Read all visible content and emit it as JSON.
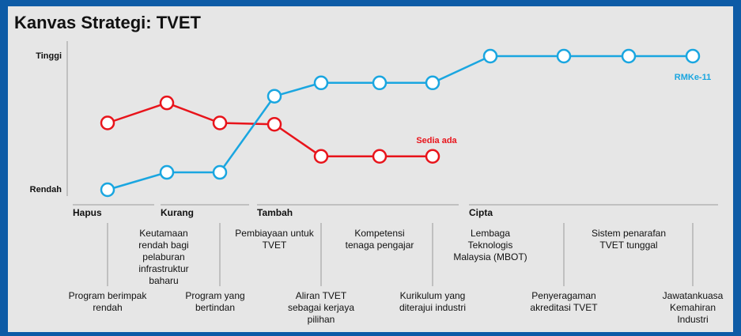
{
  "chart_data": {
    "type": "line",
    "title": "Kanvas Strategi: TVET",
    "categories": [
      "Program berimpak rendah",
      "Keutamaan rendah bagi pelaburan infrastruktur baharu",
      "Program yang bertindan",
      "Pembiayaan untuk TVET",
      "Aliran TVET sebagai kerjaya pilihan",
      "Kompetensi tenaga pengajar",
      "Kurikulum yang diterajui industri",
      "Lembaga Teknologis Malaysia (MBOT)",
      "Penyeragaman akreditasi TVET",
      "Sistem penarafan TVET tunggal",
      "Jawatankuasa Kemahiran Industri"
    ],
    "groups": [
      "Hapus",
      "Kurang",
      "Tambah",
      "Cipta"
    ],
    "series": [
      {
        "name": "Sedia ada",
        "color": "#e8141b",
        "values": [
          5.0,
          6.5,
          5.0,
          4.9,
          2.5,
          2.5,
          2.5,
          null,
          null,
          null,
          null
        ]
      },
      {
        "name": "RMKe-11",
        "color": "#1aa6e0",
        "values": [
          0,
          1.3,
          1.3,
          7.0,
          8.0,
          8.0,
          8.0,
          10,
          10,
          10,
          10
        ]
      }
    ],
    "ylim": [
      0,
      10
    ],
    "yticks": [
      {
        "value": 0,
        "label": "Rendah"
      },
      {
        "value": 10,
        "label": "Tinggi"
      }
    ],
    "grid": false
  }
}
